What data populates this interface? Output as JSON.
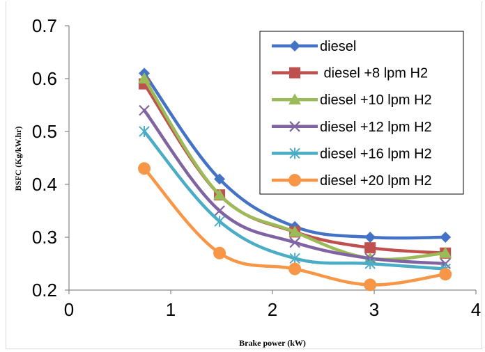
{
  "chart_data": {
    "type": "line",
    "title": "",
    "xlabel": "Brake power (kW)",
    "ylabel": "BSFC (Kg/kW.hr)",
    "xlim": [
      0,
      4
    ],
    "ylim": [
      0.2,
      0.7
    ],
    "xticks": [
      "0",
      "1",
      "2",
      "3",
      "4"
    ],
    "yticks": [
      "0.2",
      "0.3",
      "0.4",
      "0.5",
      "0.6",
      "0.7"
    ],
    "grid": false,
    "legend_position": "top-right",
    "x": [
      0.74,
      1.48,
      2.22,
      2.96,
      3.7
    ],
    "series": [
      {
        "name": "diesel",
        "color": "#4472C4",
        "marker": "diamond",
        "values": [
          0.61,
          0.41,
          0.32,
          0.3,
          0.3
        ]
      },
      {
        "name": "diesel +8 lpm H2",
        "color": "#C0504D",
        "marker": "square",
        "values": [
          0.59,
          0.38,
          0.31,
          0.28,
          0.27
        ]
      },
      {
        "name": "diesel +10 lpm H2",
        "color": "#9BBB59",
        "marker": "triangle",
        "values": [
          0.6,
          0.38,
          0.31,
          0.26,
          0.27
        ]
      },
      {
        "name": "diesel +12 lpm H2",
        "color": "#8064A2",
        "marker": "x",
        "values": [
          0.54,
          0.35,
          0.29,
          0.26,
          0.25
        ]
      },
      {
        "name": "diesel +16 lpm H2",
        "color": "#4BACC6",
        "marker": "star",
        "values": [
          0.5,
          0.33,
          0.26,
          0.25,
          0.24
        ]
      },
      {
        "name": "diesel +20 lpm H2",
        "color": "#F79646",
        "marker": "circle",
        "values": [
          0.43,
          0.27,
          0.24,
          0.21,
          0.23
        ]
      }
    ]
  }
}
